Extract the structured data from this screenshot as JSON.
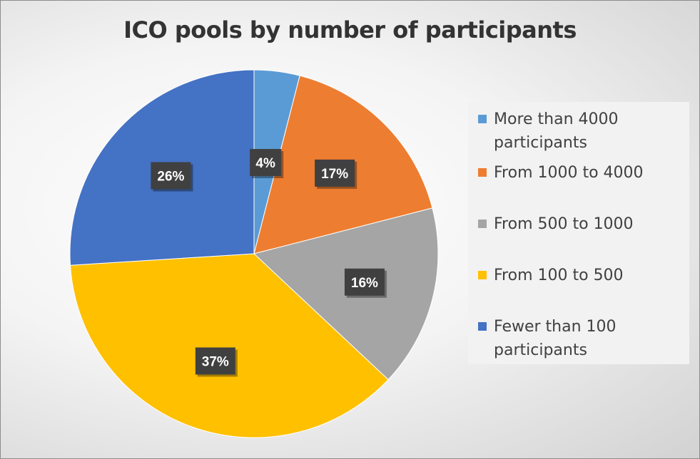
{
  "chart_data": {
    "type": "pie",
    "title": "ICO pools by number of participants",
    "legend_position": "right",
    "slices": [
      {
        "label": "More than 4000 participants",
        "value": 4,
        "value_label": "4%",
        "color": "#5b9bd5"
      },
      {
        "label": "From 1000 to 4000",
        "value": 17,
        "value_label": "17%",
        "color": "#ed7d31"
      },
      {
        "label": "From 500 to 1000",
        "value": 16,
        "value_label": "16%",
        "color": "#a5a5a5"
      },
      {
        "label": "From 100 to 500",
        "value": 37,
        "value_label": "37%",
        "color": "#ffc000"
      },
      {
        "label": "Fewer than 100 participants",
        "value": 26,
        "value_label": "26%",
        "color": "#4472c4"
      }
    ]
  }
}
